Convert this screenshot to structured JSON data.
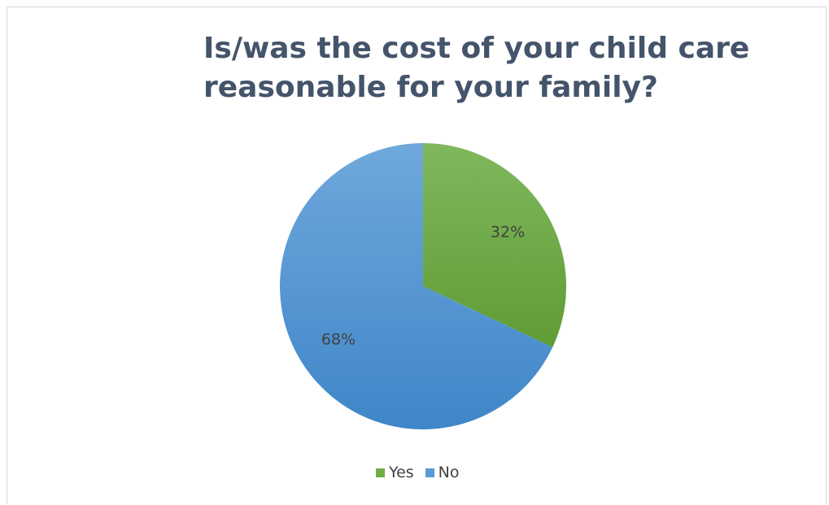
{
  "chart_data": {
    "type": "pie",
    "title_lines": [
      "Is/was the cost of your child care",
      "reasonable for your family?"
    ],
    "slices": [
      {
        "label": "Yes",
        "value": 32,
        "data_label": "32%",
        "color": "#70ad47"
      },
      {
        "label": "No",
        "value": 68,
        "data_label": "68%",
        "color": "#5b9bd5"
      }
    ],
    "legend_position": "bottom",
    "colors": {
      "title": "#44546a",
      "data_label": "#404040"
    }
  }
}
